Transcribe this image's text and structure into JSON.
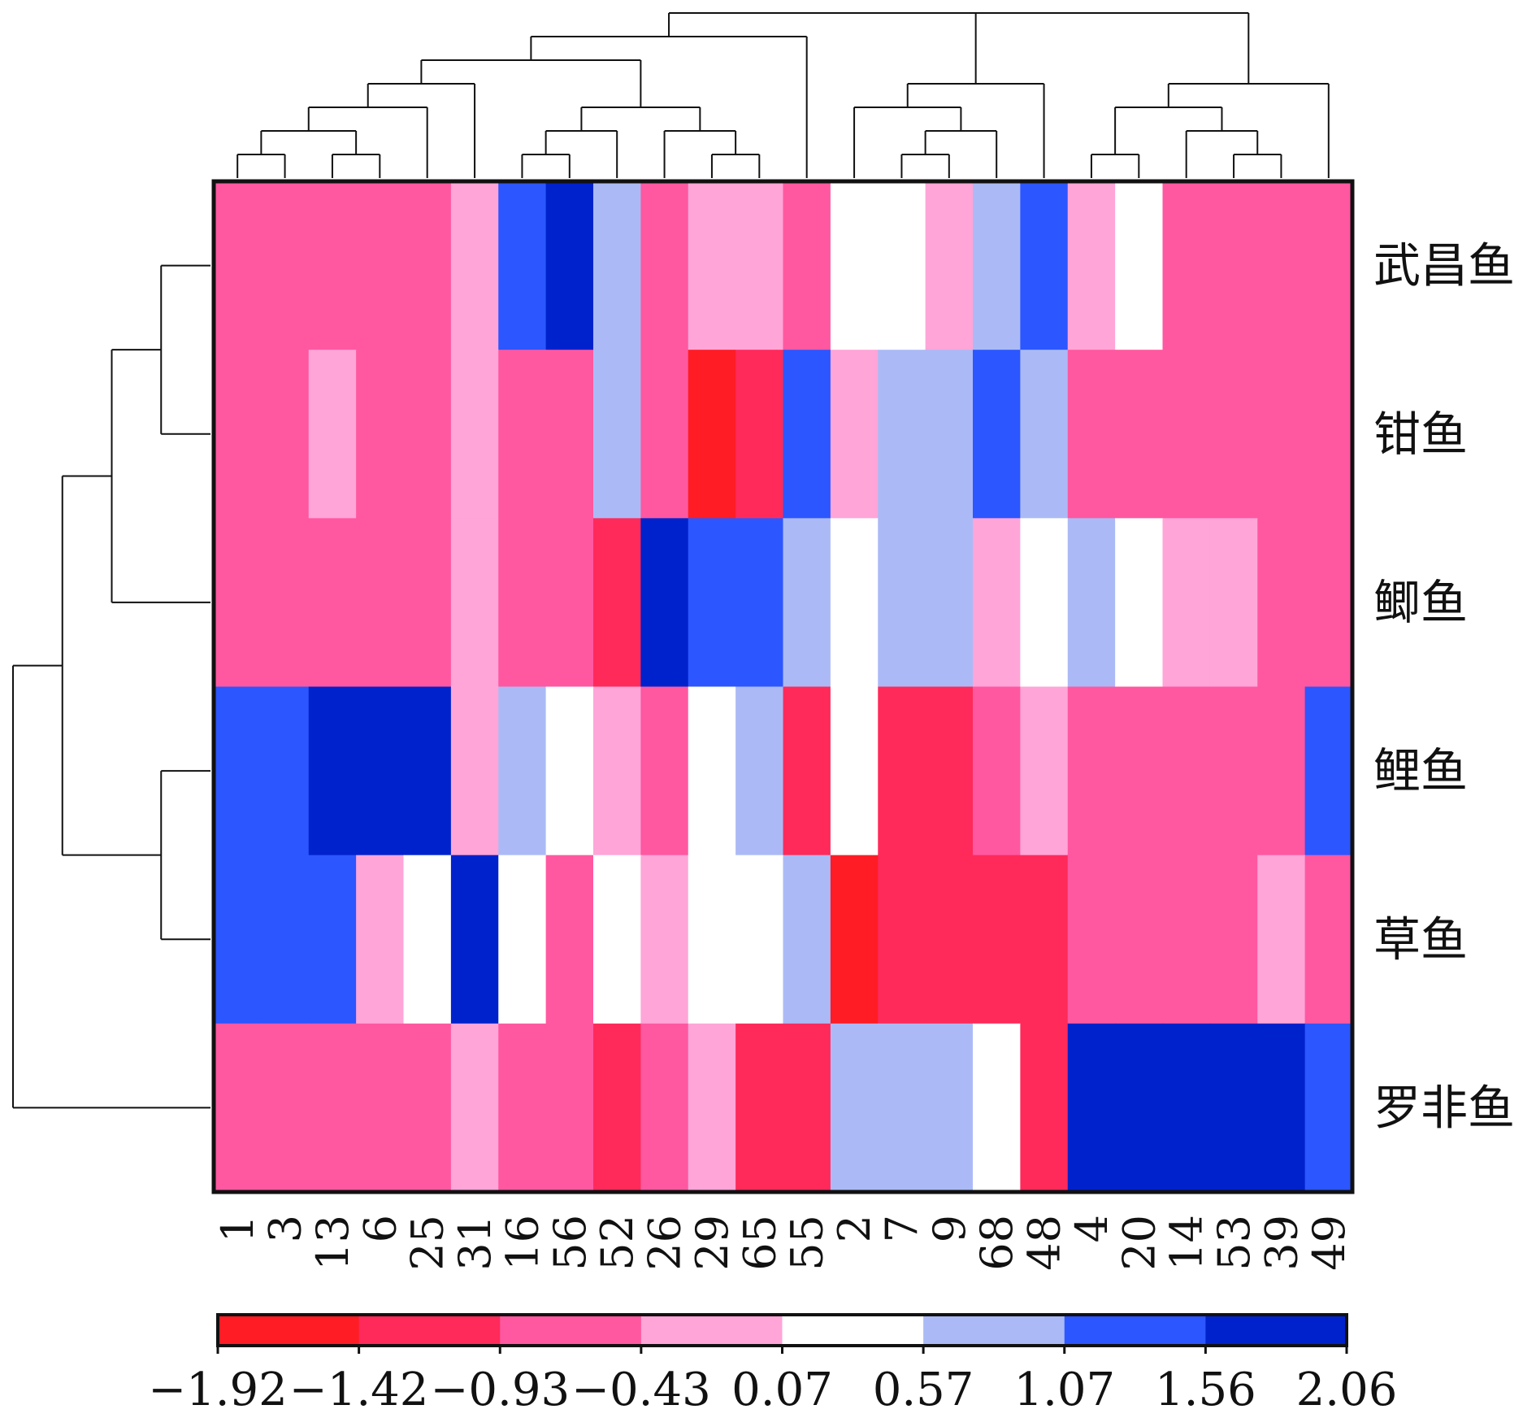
{
  "chart_data": {
    "type": "heatmap",
    "title": "",
    "rows": [
      "武昌鱼",
      "钳鱼",
      "鲫鱼",
      "鲤鱼",
      "草鱼",
      "罗非鱼"
    ],
    "columns": [
      "1",
      "3",
      "13",
      "6",
      "25",
      "31",
      "16",
      "56",
      "52",
      "26",
      "29",
      "65",
      "55",
      "2",
      "7",
      "9",
      "68",
      "48",
      "4",
      "20",
      "14",
      "53",
      "39",
      "49"
    ],
    "values": [
      [
        -0.68,
        -0.68,
        -0.68,
        -0.68,
        -0.68,
        -0.18,
        1.31,
        1.81,
        0.82,
        -0.68,
        -0.18,
        -0.18,
        -0.68,
        0.32,
        0.32,
        -0.18,
        0.82,
        1.31,
        -0.18,
        0.32,
        -0.68,
        -0.68,
        -0.68,
        -0.68
      ],
      [
        -0.68,
        -0.68,
        -0.18,
        -0.68,
        -0.68,
        -0.18,
        -0.68,
        -0.68,
        0.82,
        -0.68,
        -1.67,
        -1.17,
        1.31,
        -0.18,
        0.82,
        0.82,
        1.31,
        0.82,
        -0.68,
        -0.68,
        -0.68,
        -0.68,
        -0.68,
        -0.68
      ],
      [
        -0.68,
        -0.68,
        -0.68,
        -0.68,
        -0.68,
        -0.18,
        -0.68,
        -0.68,
        -1.17,
        1.81,
        1.31,
        1.31,
        0.82,
        0.32,
        0.82,
        0.82,
        -0.18,
        0.32,
        0.82,
        0.32,
        -0.18,
        -0.18,
        -0.68,
        -0.68
      ],
      [
        1.31,
        1.31,
        1.81,
        1.81,
        1.81,
        -0.18,
        0.82,
        0.32,
        -0.18,
        -0.68,
        0.32,
        0.82,
        -1.17,
        0.32,
        -1.17,
        -1.17,
        -0.68,
        -0.18,
        -0.68,
        -0.68,
        -0.68,
        -0.68,
        -0.68,
        1.31
      ],
      [
        1.31,
        1.31,
        1.31,
        -0.18,
        0.32,
        1.81,
        0.32,
        -0.68,
        0.32,
        -0.18,
        0.32,
        0.32,
        0.82,
        -1.67,
        -1.17,
        -1.17,
        -1.17,
        -1.17,
        -0.68,
        -0.68,
        -0.68,
        -0.68,
        -0.18,
        -0.68
      ],
      [
        -0.68,
        -0.68,
        -0.68,
        -0.68,
        -0.68,
        -0.18,
        -0.68,
        -0.68,
        -1.17,
        -0.68,
        -0.18,
        -1.17,
        -1.17,
        0.82,
        0.82,
        0.82,
        0.32,
        -1.17,
        1.81,
        1.81,
        1.81,
        1.81,
        1.81,
        1.31
      ]
    ],
    "colorbar": {
      "ticks": [
        "−1.92",
        "−1.42",
        "−0.93",
        "−0.43",
        "0.07",
        "0.57",
        "1.07",
        "1.56",
        "2.06"
      ],
      "range": [
        -1.92,
        2.06
      ],
      "colors": [
        "#ff1c24",
        "#ff2a5a",
        "#ff58a0",
        "#ffa5d8",
        "#ffffff",
        "#abbaf6",
        "#2c56ff",
        "#0022cc"
      ]
    },
    "dendrograms": {
      "column_tree": "((((((1,3),(13,6)),25),31),(((16,56),52),(26,(29,65)))),55),((2,((7,9),68)),48),(((4,20),(14,(53,39))),49)",
      "row_tree": "(((武昌鱼,钳鱼),鲫鱼),(鲤鱼,草鱼)),罗非鱼"
    }
  }
}
